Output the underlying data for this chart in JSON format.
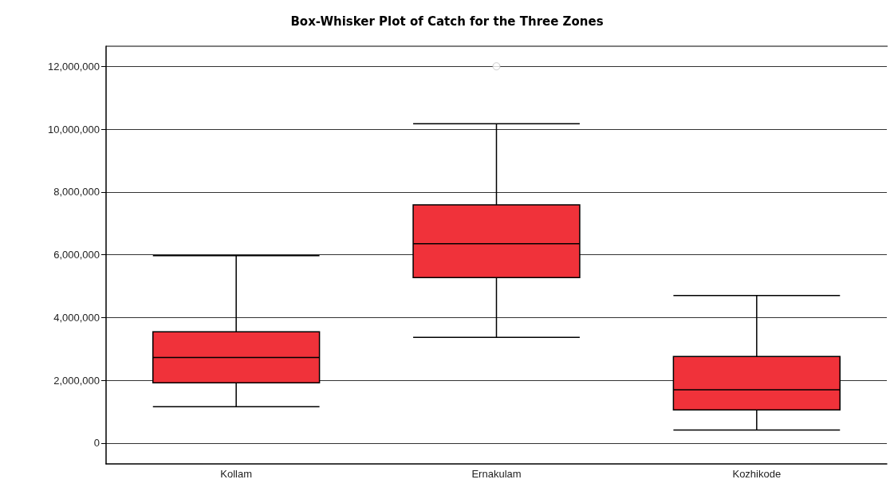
{
  "chart_data": {
    "type": "box",
    "title": "Box-Whisker Plot of Catch for the Three Zones",
    "categories": [
      "Kollam",
      "Ernakulam",
      "Kozhikode"
    ],
    "boxes": [
      {
        "low": 1160000,
        "q1": 1920000,
        "median": 2730000,
        "q3": 3550000,
        "high": 5970000
      },
      {
        "low": 3370000,
        "q1": 5270000,
        "median": 6350000,
        "q3": 7590000,
        "high": 10170000,
        "outliers": [
          12000000
        ]
      },
      {
        "low": 420000,
        "q1": 1060000,
        "median": 1700000,
        "q3": 2760000,
        "high": 4700000
      }
    ],
    "color": "#f0323a",
    "ylim": [
      -660000,
      12640000
    ],
    "yticks": [
      {
        "value": 0,
        "label": "0"
      },
      {
        "value": 2000000,
        "label": "2,000,000"
      },
      {
        "value": 4000000,
        "label": "4,000,000"
      },
      {
        "value": 6000000,
        "label": "6,000,000"
      },
      {
        "value": 8000000,
        "label": "8,000,000"
      },
      {
        "value": 10000000,
        "label": "10,000,000"
      },
      {
        "value": 12000000,
        "label": "12,000,000"
      }
    ],
    "grid": "y"
  }
}
